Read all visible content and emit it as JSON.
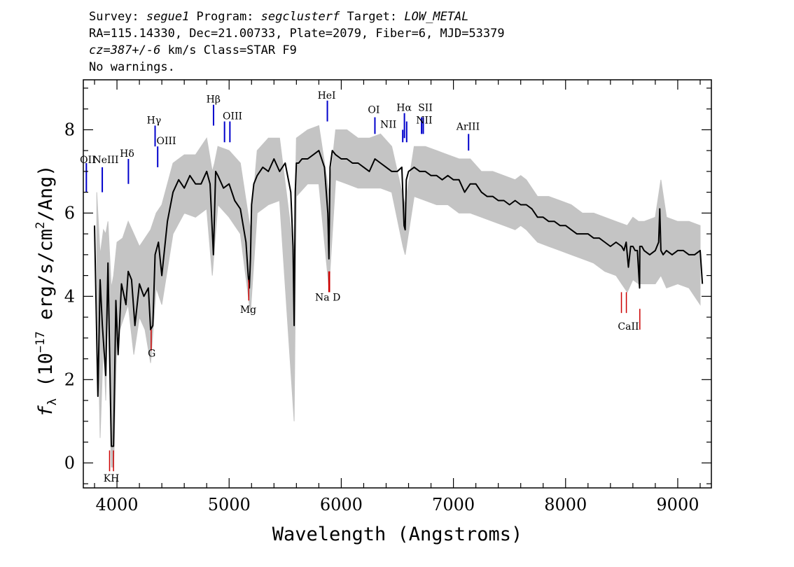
{
  "header": {
    "line1": {
      "survey_label": "Survey: ",
      "survey": "segue1",
      "program_label": " Program: ",
      "program": "segclusterf",
      "target_label": " Target: ",
      "target": "LOW_METAL"
    },
    "line2": "RA=115.14330, Dec=21.00733, Plate=2079, Fiber=6, MJD=53379",
    "line3": {
      "cz": "cz=387+/-6",
      "rest": " km/s Class=STAR F9"
    },
    "line4": "No warnings."
  },
  "chart_data": {
    "type": "line",
    "title": "",
    "xlabel": "Wavelength (Angstroms)",
    "ylabel_parts": {
      "f": "f",
      "lambda": "λ",
      "open": " (10",
      "exp": "−17",
      "mid": " erg/s/cm",
      "sq": "2",
      "close": "/Ang)"
    },
    "xlim": [
      3700,
      9300
    ],
    "ylim": [
      -0.6,
      9.2
    ],
    "x_ticks": [
      4000,
      5000,
      6000,
      7000,
      8000,
      9000
    ],
    "y_ticks": [
      0,
      2,
      4,
      6,
      8
    ],
    "series": [
      {
        "role": "spectrum",
        "color": "#000000",
        "x": [
          3800,
          3830,
          3850,
          3870,
          3900,
          3920,
          3950,
          3970,
          3990,
          4010,
          4040,
          4080,
          4100,
          4130,
          4160,
          4200,
          4240,
          4280,
          4300,
          4320,
          4340,
          4370,
          4400,
          4450,
          4500,
          4550,
          4600,
          4650,
          4700,
          4750,
          4800,
          4830,
          4860,
          4870,
          4880,
          4900,
          4950,
          5000,
          5050,
          5100,
          5150,
          5170,
          5180,
          5190,
          5200,
          5220,
          5250,
          5300,
          5350,
          5400,
          5450,
          5500,
          5550,
          5570,
          5580,
          5590,
          5600,
          5620,
          5650,
          5700,
          5750,
          5800,
          5850,
          5880,
          5890,
          5900,
          5920,
          5950,
          6000,
          6050,
          6100,
          6150,
          6200,
          6250,
          6300,
          6350,
          6400,
          6450,
          6500,
          6540,
          6560,
          6570,
          6580,
          6600,
          6650,
          6700,
          6750,
          6800,
          6850,
          6900,
          6950,
          7000,
          7050,
          7100,
          7150,
          7200,
          7250,
          7300,
          7350,
          7400,
          7450,
          7500,
          7550,
          7600,
          7650,
          7700,
          7750,
          7800,
          7850,
          7900,
          7950,
          8000,
          8050,
          8100,
          8150,
          8200,
          8250,
          8300,
          8350,
          8400,
          8450,
          8500,
          8520,
          8540,
          8560,
          8580,
          8600,
          8620,
          8640,
          8660,
          8662,
          8680,
          8700,
          8750,
          8800,
          8830,
          8840,
          8850,
          8870,
          8900,
          8950,
          9000,
          9050,
          9100,
          9150,
          9200,
          9220
        ],
        "y": [
          5.7,
          1.6,
          4.4,
          3.3,
          2.1,
          4.8,
          0.4,
          0.4,
          3.9,
          2.6,
          4.3,
          3.8,
          4.6,
          4.4,
          3.3,
          4.3,
          4.0,
          4.2,
          3.2,
          3.3,
          5.0,
          5.3,
          4.5,
          5.8,
          6.5,
          6.8,
          6.6,
          6.9,
          6.7,
          6.7,
          7.0,
          6.7,
          5.0,
          6.0,
          7.0,
          6.9,
          6.6,
          6.7,
          6.3,
          6.1,
          5.3,
          4.5,
          4.2,
          4.9,
          6.2,
          6.7,
          6.9,
          7.1,
          7.0,
          7.3,
          7.0,
          7.2,
          6.5,
          5.2,
          3.3,
          6.5,
          7.2,
          7.2,
          7.3,
          7.3,
          7.4,
          7.5,
          7.1,
          6.0,
          4.9,
          7.1,
          7.5,
          7.4,
          7.3,
          7.3,
          7.2,
          7.2,
          7.1,
          7.0,
          7.3,
          7.2,
          7.1,
          7.0,
          7.0,
          7.1,
          5.7,
          5.6,
          6.8,
          7.0,
          7.1,
          7.0,
          7.0,
          6.9,
          6.9,
          6.8,
          6.9,
          6.8,
          6.8,
          6.5,
          6.7,
          6.7,
          6.5,
          6.4,
          6.4,
          6.3,
          6.3,
          6.2,
          6.3,
          6.2,
          6.2,
          6.1,
          5.9,
          5.9,
          5.8,
          5.8,
          5.7,
          5.7,
          5.6,
          5.5,
          5.5,
          5.5,
          5.4,
          5.4,
          5.3,
          5.2,
          5.3,
          5.2,
          5.1,
          5.3,
          4.7,
          5.2,
          5.2,
          5.1,
          5.1,
          4.2,
          5.2,
          5.2,
          5.1,
          5.0,
          5.1,
          5.3,
          6.1,
          5.1,
          5.0,
          5.1,
          5.0,
          5.1,
          5.1,
          5.0,
          5.0,
          5.1,
          4.3
        ]
      },
      {
        "role": "error",
        "color": "#c4c4c4",
        "x": [
          3820,
          3850,
          3880,
          3900,
          3920,
          3950,
          3970,
          4000,
          4050,
          4100,
          4150,
          4200,
          4250,
          4300,
          4350,
          4400,
          4500,
          4600,
          4700,
          4800,
          4850,
          4870,
          4900,
          5000,
          5100,
          5190,
          5250,
          5350,
          5450,
          5580,
          5600,
          5700,
          5800,
          5890,
          5950,
          6050,
          6150,
          6250,
          6350,
          6450,
          6550,
          6570,
          6650,
          6750,
          6850,
          6950,
          7050,
          7150,
          7250,
          7350,
          7450,
          7550,
          7600,
          7650,
          7750,
          7850,
          7950,
          8050,
          8150,
          8250,
          8350,
          8450,
          8550,
          8600,
          8650,
          8700,
          8800,
          8850,
          8900,
          9000,
          9100,
          9200
        ],
        "lo": [
          4.8,
          0.6,
          3.0,
          1.5,
          4.0,
          -0.1,
          -0.1,
          3.0,
          3.4,
          3.8,
          2.6,
          3.5,
          3.2,
          2.4,
          4.2,
          3.8,
          5.5,
          6.0,
          5.9,
          6.1,
          4.5,
          5.2,
          6.2,
          5.9,
          5.5,
          3.6,
          6.0,
          6.2,
          6.3,
          1.0,
          6.4,
          6.7,
          6.7,
          4.2,
          6.8,
          6.7,
          6.6,
          6.6,
          6.6,
          6.5,
          5.2,
          5.0,
          6.4,
          6.3,
          6.2,
          6.2,
          6.0,
          6.0,
          5.9,
          5.8,
          5.7,
          5.6,
          5.7,
          5.6,
          5.3,
          5.2,
          5.1,
          5.0,
          4.9,
          4.8,
          4.6,
          4.5,
          4.1,
          4.4,
          4.3,
          4.3,
          4.3,
          4.5,
          4.2,
          4.3,
          4.2,
          3.8
        ],
        "hi": [
          6.5,
          5.0,
          5.6,
          5.5,
          5.8,
          4.2,
          4.5,
          5.3,
          5.4,
          5.8,
          5.5,
          5.2,
          5.4,
          5.6,
          6.0,
          6.2,
          7.2,
          7.4,
          7.4,
          7.8,
          7.0,
          7.2,
          7.6,
          7.5,
          7.2,
          5.6,
          7.5,
          7.8,
          7.8,
          5.0,
          7.8,
          8.0,
          8.1,
          6.5,
          8.0,
          8.0,
          7.8,
          7.8,
          7.9,
          7.6,
          6.4,
          6.2,
          7.6,
          7.6,
          7.5,
          7.4,
          7.3,
          7.3,
          7.0,
          7.0,
          6.9,
          6.8,
          6.9,
          6.8,
          6.4,
          6.4,
          6.3,
          6.2,
          6.0,
          6.0,
          5.9,
          5.8,
          5.7,
          5.9,
          5.8,
          5.8,
          5.9,
          6.8,
          5.9,
          5.8,
          5.8,
          5.7
        ]
      }
    ],
    "emission_lines": [
      {
        "label": "OII",
        "x": 3727,
        "y1": 6.5,
        "y2": 7.2
      },
      {
        "label": "NeIII",
        "x": 3869,
        "y1": 6.5,
        "y2": 7.1
      },
      {
        "label": "Hδ",
        "x": 4102,
        "y1": 6.7,
        "y2": 7.3
      },
      {
        "label": "Hγ",
        "x": 4340,
        "y1": 7.6,
        "y2": 8.1
      },
      {
        "label": "OIII",
        "x": 4363,
        "y1": 7.1,
        "y2": 7.6
      },
      {
        "label": "Hβ",
        "x": 4861,
        "y1": 8.1,
        "y2": 8.6
      },
      {
        "label": "OIII",
        "x": 4959,
        "y1": 7.7,
        "y2": 8.2
      },
      {
        "label": "OIII",
        "x": 5007,
        "y1": 7.7,
        "y2": 8.2
      },
      {
        "label": "HeI",
        "x": 5876,
        "y1": 8.2,
        "y2": 8.7
      },
      {
        "label": "OI",
        "x": 6300,
        "y1": 7.9,
        "y2": 8.3
      },
      {
        "label": "NII",
        "x": 6548,
        "y1": 7.7,
        "y2": 8.0
      },
      {
        "label": "Hα",
        "x": 6563,
        "y1": 7.8,
        "y2": 8.4
      },
      {
        "label": "NII",
        "x": 6583,
        "y1": 7.7,
        "y2": 8.2
      },
      {
        "label": "SII",
        "x": 6716,
        "y1": 7.9,
        "y2": 8.3
      },
      {
        "label": "SII",
        "x": 6731,
        "y1": 7.9,
        "y2": 8.3
      },
      {
        "label": "ArIII",
        "x": 7135,
        "y1": 7.5,
        "y2": 7.9
      }
    ],
    "absorption_lines": [
      {
        "label": "K",
        "x": 3934,
        "y1": -0.2,
        "y2": 0.3
      },
      {
        "label": "H",
        "x": 3969,
        "y1": -0.2,
        "y2": 0.3
      },
      {
        "label": "G",
        "x": 4305,
        "y1": 2.7,
        "y2": 3.2
      },
      {
        "label": "Mg",
        "x": 5175,
        "y1": 3.9,
        "y2": 4.4
      },
      {
        "label": "Na",
        "x": 5889,
        "y1": 4.1,
        "y2": 4.6
      },
      {
        "label": "D",
        "x": 5896,
        "y1": 4.1,
        "y2": 4.6
      },
      {
        "label": "CaII",
        "x": 8498,
        "y1": 3.6,
        "y2": 4.1
      },
      {
        "label": "CaII",
        "x": 8542,
        "y1": 3.6,
        "y2": 4.1
      },
      {
        "label": "CaII",
        "x": 8662,
        "y1": 3.2,
        "y2": 3.7
      }
    ],
    "line_label_texts": {
      "OII": "OII",
      "NeIII": "NeIII",
      "Hdelta": "Hδ",
      "Hgamma": "Hγ",
      "OIII": "OIII",
      "Hbeta": "Hβ",
      "OIII_b": "OIII",
      "HeI": "HeI",
      "OI": "OI",
      "NII": "NII",
      "Halpha": "Hα",
      "SII": "SII",
      "NII_b": "NII",
      "ArIII": "ArIII",
      "KH": "KH",
      "G": "G",
      "Mg": "Mg",
      "NaD": "Na D",
      "CaII": "CaII"
    },
    "colors": {
      "emission": "#0000cc",
      "absorption": "#cc0000",
      "axis": "#000000"
    }
  }
}
